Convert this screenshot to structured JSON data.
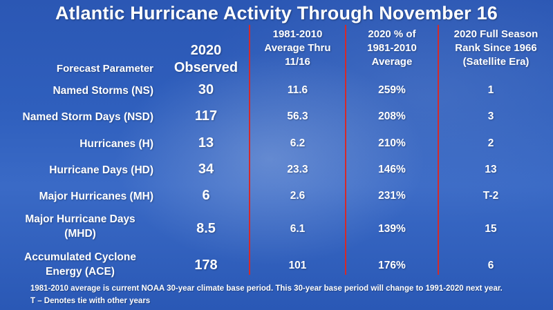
{
  "title": "Atlantic Hurricane Activity Through November 16",
  "headers": {
    "param": "Forecast Parameter",
    "observed": [
      "2020",
      "Observed"
    ],
    "average": [
      "1981-2010",
      "Average Thru",
      "11/16"
    ],
    "pct": [
      "2020 % of",
      "1981-2010",
      "Average"
    ],
    "rank": [
      "2020 Full Season",
      "Rank Since 1966",
      "(Satellite Era)"
    ]
  },
  "rows": [
    {
      "param": [
        "Named Storms (NS)"
      ],
      "observed": "30",
      "average": "11.6",
      "pct": "259%",
      "rank": "1"
    },
    {
      "param": [
        "Named Storm Days (NSD)"
      ],
      "observed": "117",
      "average": "56.3",
      "pct": "208%",
      "rank": "3"
    },
    {
      "param": [
        "Hurricanes (H)"
      ],
      "observed": "13",
      "average": "6.2",
      "pct": "210%",
      "rank": "2"
    },
    {
      "param": [
        "Hurricane Days (HD)"
      ],
      "observed": "34",
      "average": "23.3",
      "pct": "146%",
      "rank": "13"
    },
    {
      "param": [
        "Major Hurricanes (MH)"
      ],
      "observed": "6",
      "average": "2.6",
      "pct": "231%",
      "rank": "T-2"
    },
    {
      "param": [
        "Major Hurricane Days",
        "(MHD)"
      ],
      "observed": "8.5",
      "average": "6.1",
      "pct": "139%",
      "rank": "15"
    },
    {
      "param": [
        "Accumulated Cyclone",
        "Energy (ACE)"
      ],
      "observed": "178",
      "average": "101",
      "pct": "176%",
      "rank": "6"
    }
  ],
  "footnotes": [
    "1981-2010 average is current NOAA 30-year climate base period. This 30-year base period will change to 1991-2020 next year.",
    "T – Denotes tie with other years"
  ]
}
